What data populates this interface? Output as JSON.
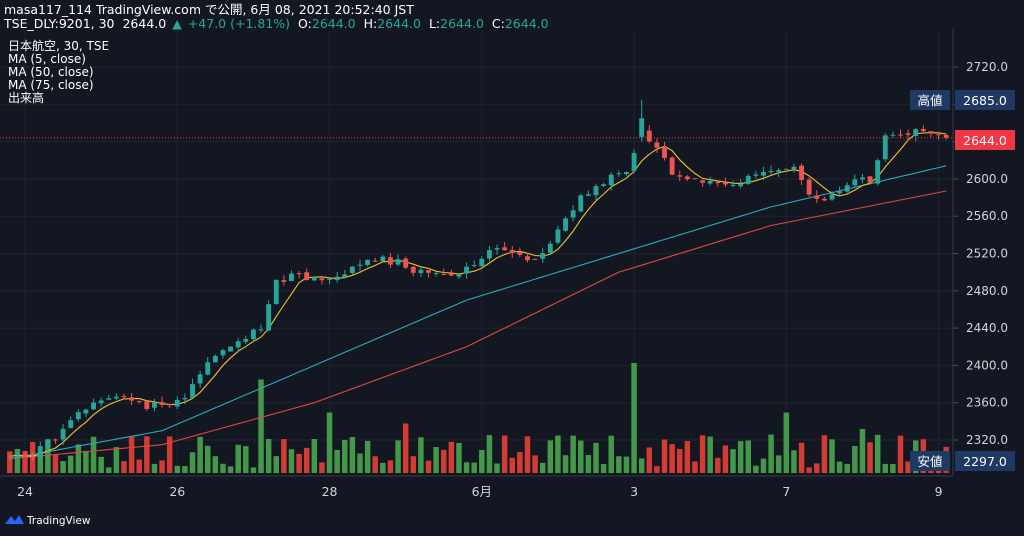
{
  "header": {
    "line1": "masa117_114 TradingView.com で公開, 6月 08, 2021 20:52:40 JST",
    "symbol": "TSE_DLY:9201, 30",
    "last": "2644.0",
    "change": "+47.0 (+1.81%)",
    "o_label": "O:",
    "o_value": "2644.0",
    "h_label": "H:",
    "h_value": "2644.0",
    "l_label": "L:",
    "l_value": "2644.0",
    "c_label": "C:",
    "c_value": "2644.0"
  },
  "legend": [
    "日本航空, 30, TSE",
    "MA (5, close)",
    "MA (50, close)",
    "MA (75, close)",
    "出来高"
  ],
  "price_axis": {
    "ticks": [
      "2720.0",
      "2680.0",
      "2640.0",
      "2600.0",
      "2560.0",
      "2520.0",
      "2480.0",
      "2440.0",
      "2400.0",
      "2360.0",
      "2320.0"
    ],
    "high_label": "高値",
    "high_value": "2685.0",
    "last_value": "2644.0",
    "low_label": "安値",
    "low_value": "2297.0"
  },
  "time_axis": [
    "24",
    "26",
    "28",
    "6月",
    "3",
    "7",
    "9"
  ],
  "footer": {
    "brand": "TradingView"
  },
  "colors": {
    "background": "#131722",
    "up": "#26a69a",
    "down": "#ef5350",
    "vol_up": "#4caf50",
    "vol_down": "#f44336",
    "ma5": "#f0c02e",
    "ma50": "#29a9c4",
    "ma75": "#e0473f",
    "axis_text": "#d1d4dc",
    "label_box": "#1e3a64",
    "last_box": "#f23645"
  },
  "chart_data": {
    "type": "candlestick",
    "title": "日本航空, 30, TSE",
    "ylim": [
      2290,
      2740
    ],
    "y_ticks": [
      2320,
      2360,
      2400,
      2440,
      2480,
      2520,
      2560,
      2600,
      2640,
      2680,
      2720
    ],
    "x_tick_labels": [
      "24",
      "26",
      "28",
      "6月",
      "3",
      "7",
      "9"
    ],
    "x_tick_bar_index": [
      2,
      22,
      42,
      62,
      82,
      102,
      122
    ],
    "high": 2685.0,
    "low": 2297.0,
    "last": 2644.0,
    "bars": 124,
    "trend_anchors": [
      [
        0,
        2304
      ],
      [
        3,
        2305
      ],
      [
        6,
        2322
      ],
      [
        9,
        2348
      ],
      [
        12,
        2363
      ],
      [
        15,
        2370
      ],
      [
        18,
        2357
      ],
      [
        21,
        2358
      ],
      [
        23,
        2364
      ],
      [
        25,
        2392
      ],
      [
        27,
        2410
      ],
      [
        29,
        2420
      ],
      [
        31,
        2432
      ],
      [
        33,
        2442
      ],
      [
        35,
        2490
      ],
      [
        37,
        2496
      ],
      [
        39,
        2494
      ],
      [
        41,
        2493
      ],
      [
        43,
        2496
      ],
      [
        45,
        2505
      ],
      [
        47,
        2511
      ],
      [
        49,
        2514
      ],
      [
        51,
        2510
      ],
      [
        53,
        2500
      ],
      [
        55,
        2500
      ],
      [
        57,
        2494
      ],
      [
        59,
        2495
      ],
      [
        61,
        2510
      ],
      [
        63,
        2526
      ],
      [
        65,
        2520
      ],
      [
        67,
        2518
      ],
      [
        69,
        2515
      ],
      [
        71,
        2532
      ],
      [
        73,
        2560
      ],
      [
        75,
        2580
      ],
      [
        77,
        2592
      ],
      [
        79,
        2603
      ],
      [
        81,
        2610
      ],
      [
        83,
        2650
      ],
      [
        85,
        2637
      ],
      [
        87,
        2605
      ],
      [
        89,
        2600
      ],
      [
        91,
        2599
      ],
      [
        93,
        2598
      ],
      [
        95,
        2590
      ],
      [
        97,
        2605
      ],
      [
        99,
        2607
      ],
      [
        101,
        2606
      ],
      [
        103,
        2610
      ],
      [
        105,
        2585
      ],
      [
        107,
        2580
      ],
      [
        109,
        2590
      ],
      [
        111,
        2602
      ],
      [
        113,
        2600
      ],
      [
        115,
        2645
      ],
      [
        117,
        2650
      ],
      [
        119,
        2650
      ],
      [
        121,
        2648
      ],
      [
        123,
        2644
      ]
    ],
    "ma50_anchors": [
      [
        0,
        2300
      ],
      [
        20,
        2330
      ],
      [
        40,
        2400
      ],
      [
        60,
        2470
      ],
      [
        80,
        2520
      ],
      [
        100,
        2570
      ],
      [
        123,
        2614
      ]
    ],
    "ma75_anchors": [
      [
        0,
        2300
      ],
      [
        20,
        2315
      ],
      [
        40,
        2360
      ],
      [
        60,
        2420
      ],
      [
        80,
        2500
      ],
      [
        100,
        2550
      ],
      [
        123,
        2587
      ]
    ],
    "volume_max_ref": 1.0,
    "volume_spikes": [
      [
        33,
        0.85
      ],
      [
        42,
        0.55
      ],
      [
        82,
        1.0
      ],
      [
        102,
        0.55
      ],
      [
        112,
        0.4
      ],
      [
        52,
        0.45
      ]
    ]
  }
}
